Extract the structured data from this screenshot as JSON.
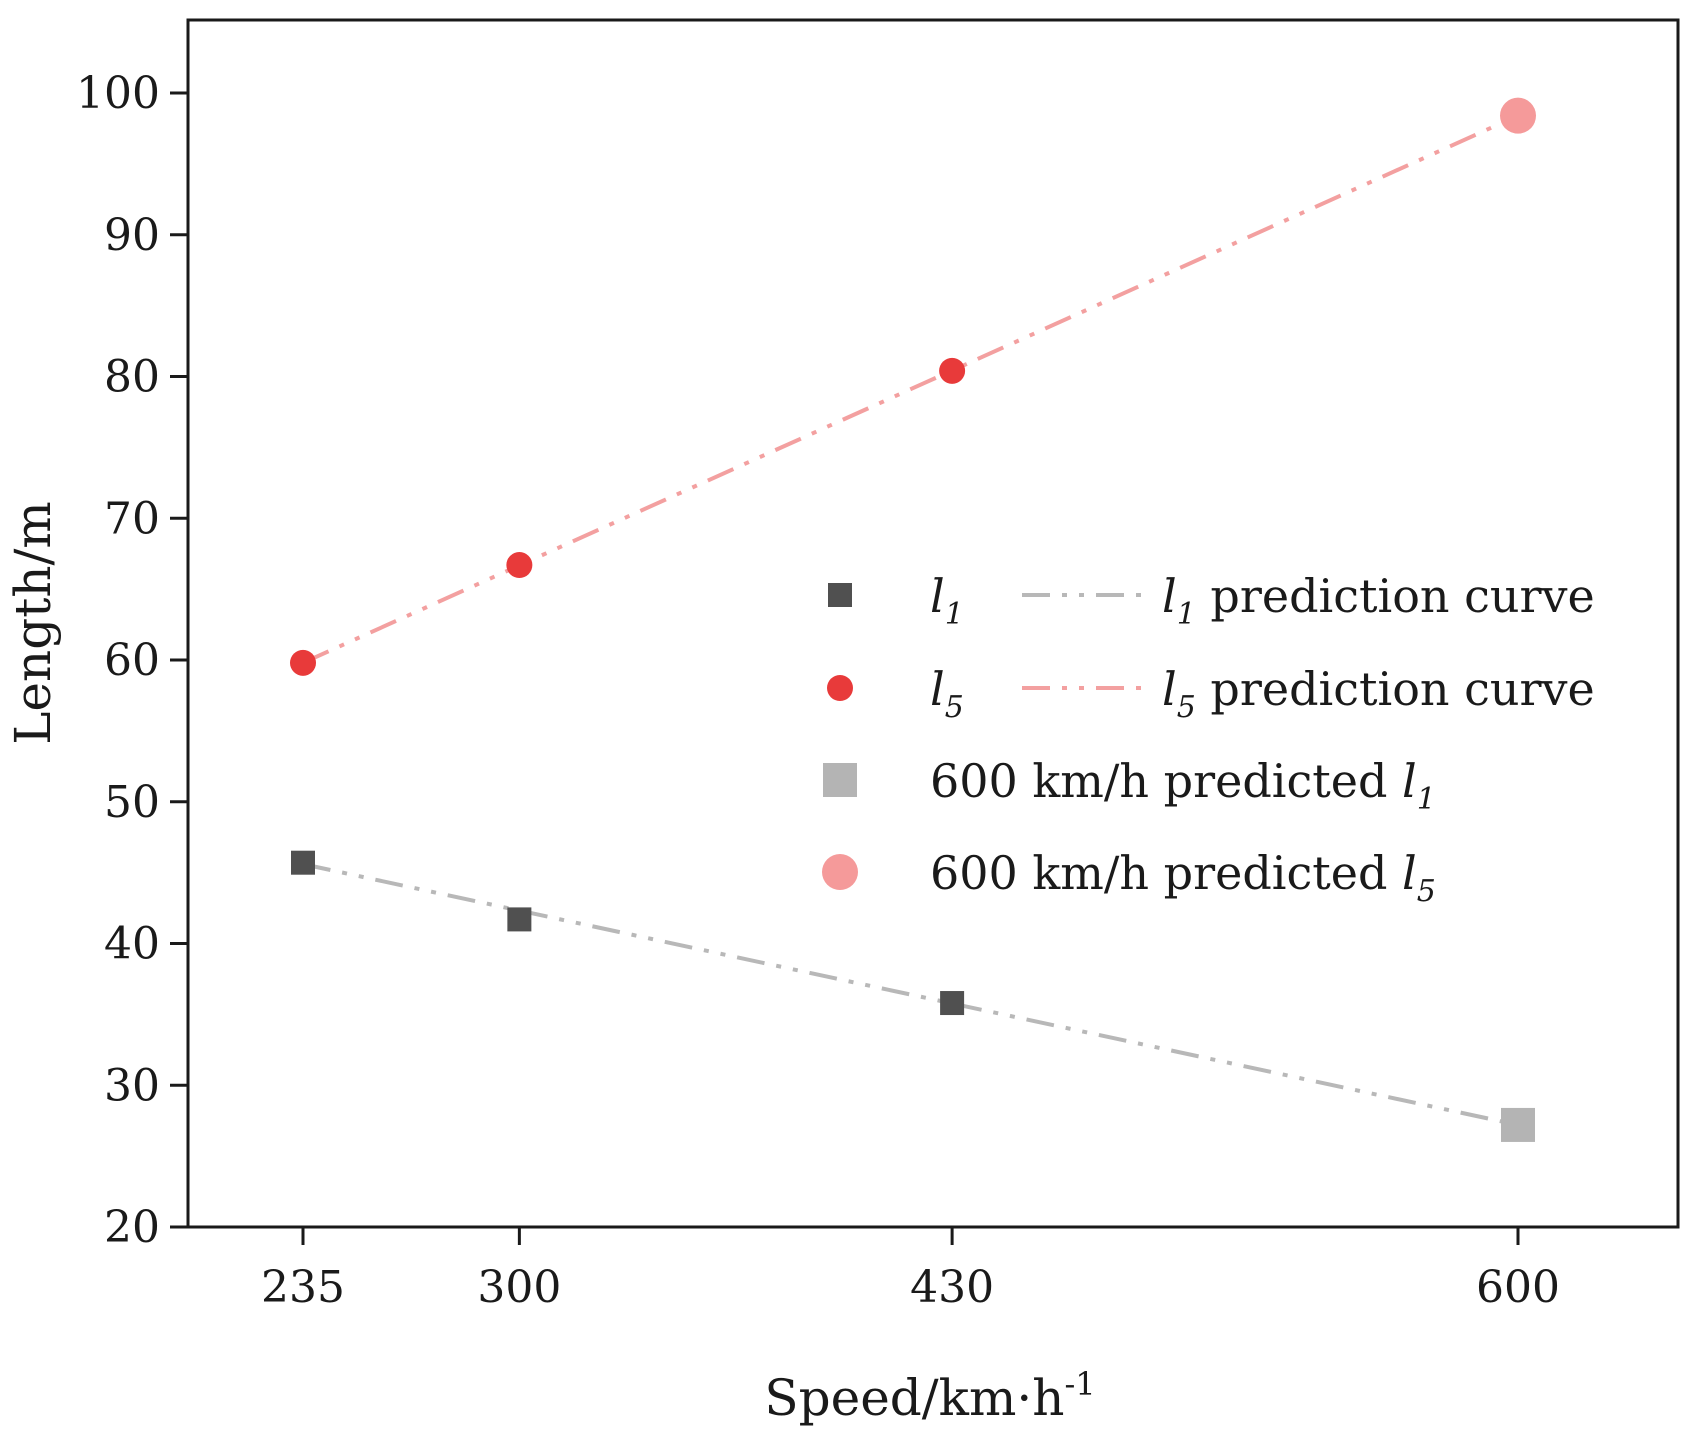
{
  "chart_data": {
    "type": "scatter",
    "title": "",
    "xlabel": "Speed/km·h",
    "xlabel_sup": "-1",
    "ylabel": "Length/m",
    "x_ticks": [
      235,
      300,
      430,
      600
    ],
    "y_ticks": [
      20,
      30,
      40,
      50,
      60,
      70,
      80,
      90,
      100
    ],
    "xlim": [
      200,
      640
    ],
    "ylim": [
      20,
      105
    ],
    "grid": false,
    "legend_position": "right",
    "series": [
      {
        "name": "l1",
        "label_sym": "l",
        "label_sub": "1",
        "marker": "square",
        "color": "#505050",
        "x": [
          235,
          300,
          430
        ],
        "y": [
          45.7,
          41.7,
          35.8
        ]
      },
      {
        "name": "l1 prediction curve",
        "label_sym": "l",
        "label_sub": "1",
        "label_rest": " prediction curve",
        "style": "dash-dot",
        "color": "#b8b8b8",
        "x": [
          235,
          600
        ],
        "y": [
          45.6,
          27.2
        ]
      },
      {
        "name": "l5",
        "label_sym": "l",
        "label_sub": "5",
        "marker": "circle",
        "color": "#e83a3a",
        "x": [
          235,
          300,
          430
        ],
        "y": [
          59.8,
          66.7,
          80.4
        ]
      },
      {
        "name": "l5 prediction curve",
        "label_sym": "l",
        "label_sub": "5",
        "label_rest": " prediction curve",
        "style": "dash-dot",
        "color": "#f3a0a0",
        "x": [
          235,
          600
        ],
        "y": [
          59.8,
          98.4
        ]
      },
      {
        "name": "600 km/h predicted l1",
        "label_prefix": "600 km/h predicted ",
        "label_sym": "l",
        "label_sub": "1",
        "marker": "square-large",
        "color": "#b4b4b4",
        "x": [
          600
        ],
        "y": [
          27.2
        ]
      },
      {
        "name": "600 km/h predicted l5",
        "label_prefix": "600 km/h predicted ",
        "label_sym": "l",
        "label_sub": "5",
        "marker": "circle-large",
        "color": "#f59a9a",
        "x": [
          600
        ],
        "y": [
          98.4
        ]
      }
    ]
  }
}
